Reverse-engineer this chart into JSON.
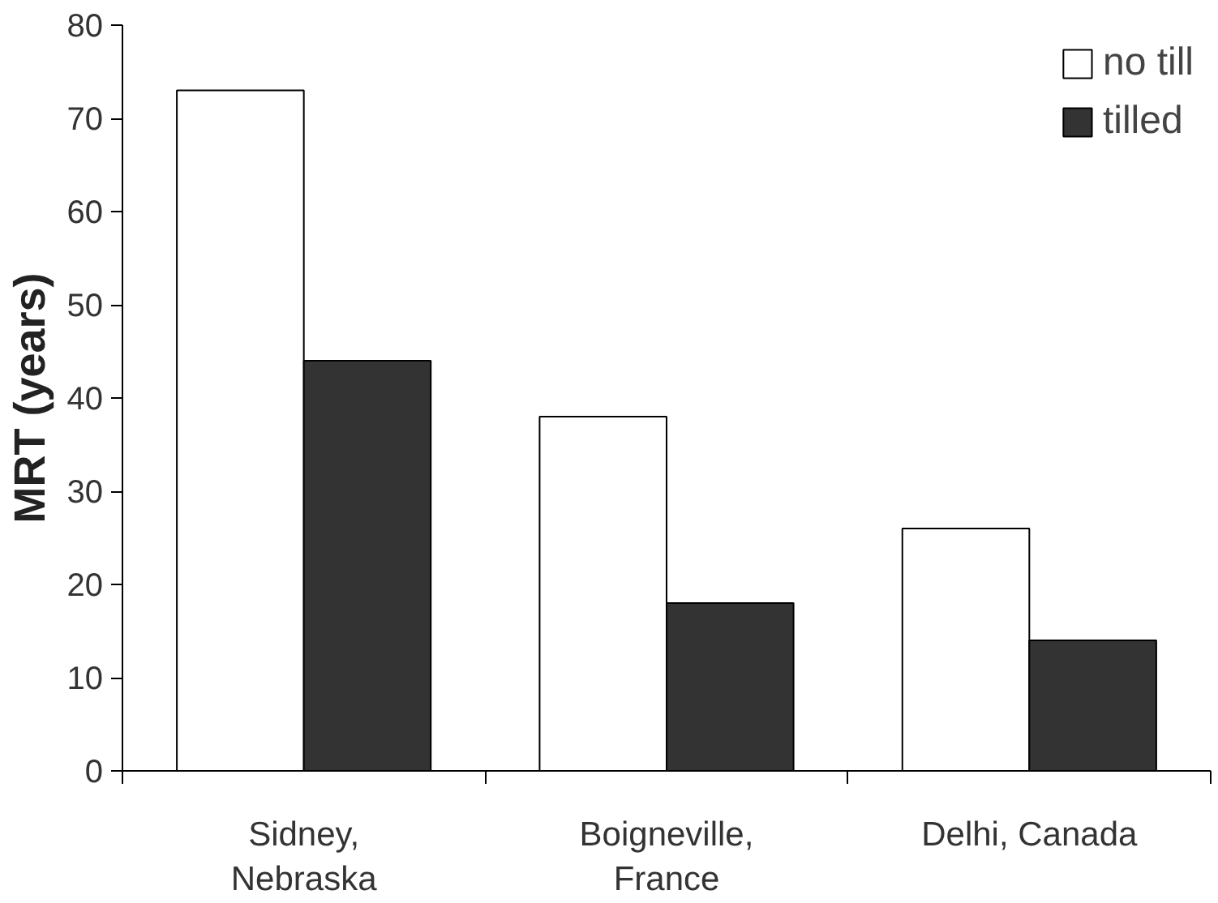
{
  "chart_data": {
    "type": "bar",
    "ylabel": "MRT (years)",
    "categories": [
      "Sidney,\nNebraska",
      "Boigneville,\nFrance",
      "Delhi, Canada"
    ],
    "series": [
      {
        "name": "no till",
        "color": "#ffffff",
        "values": [
          73,
          38,
          26
        ]
      },
      {
        "name": "tilled",
        "color": "#333333",
        "values": [
          44,
          18,
          14
        ]
      }
    ],
    "ylim": [
      0,
      80
    ],
    "yticks": [
      0,
      10,
      20,
      30,
      40,
      50,
      60,
      70,
      80
    ],
    "grid": false,
    "legend": "top right"
  }
}
